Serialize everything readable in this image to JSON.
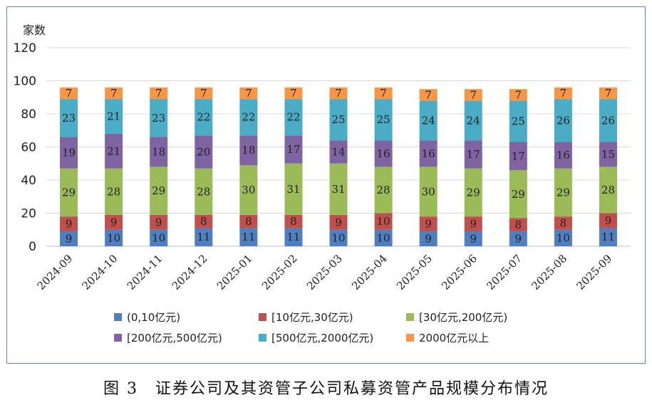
{
  "chart_data": {
    "type": "bar",
    "stacked": true,
    "ylabel": "家数",
    "ylim": [
      0,
      120
    ],
    "yticks": [
      0,
      20,
      40,
      60,
      80,
      100,
      120
    ],
    "grid": true,
    "legend_position": "bottom",
    "categories": [
      "2024-09",
      "2024-10",
      "2024-11",
      "2024-12",
      "2025-01",
      "2025-02",
      "2025-03",
      "2025-04",
      "2025-05",
      "2025-06",
      "2025-07",
      "2025-08",
      "2025-09"
    ],
    "series": [
      {
        "name": "(0,10亿元)",
        "color": "#4f7fbf",
        "values": [
          9,
          10,
          10,
          11,
          11,
          11,
          10,
          10,
          9,
          9,
          9,
          10,
          11
        ]
      },
      {
        "name": "[10亿元,30亿元)",
        "color": "#c0504d",
        "values": [
          9,
          9,
          9,
          8,
          8,
          8,
          9,
          10,
          9,
          9,
          8,
          8,
          9
        ]
      },
      {
        "name": "[30亿元,200亿元)",
        "color": "#9bbb59",
        "values": [
          29,
          28,
          29,
          28,
          30,
          31,
          31,
          28,
          30,
          29,
          29,
          29,
          28
        ]
      },
      {
        "name": "[200亿元,500亿元)",
        "color": "#8064a2",
        "values": [
          19,
          21,
          18,
          20,
          18,
          17,
          14,
          16,
          16,
          17,
          17,
          16,
          15
        ]
      },
      {
        "name": "[500亿元,2000亿元)",
        "color": "#4bacc6",
        "values": [
          23,
          21,
          23,
          22,
          22,
          22,
          25,
          25,
          24,
          24,
          25,
          26,
          26
        ]
      },
      {
        "name": "2000亿元以上",
        "color": "#f79646",
        "values": [
          7,
          7,
          7,
          7,
          7,
          7,
          7,
          7,
          7,
          7,
          7,
          7,
          7
        ]
      }
    ]
  },
  "caption": "图 3　证券公司及其资管子公司私募资管产品规模分布情况"
}
